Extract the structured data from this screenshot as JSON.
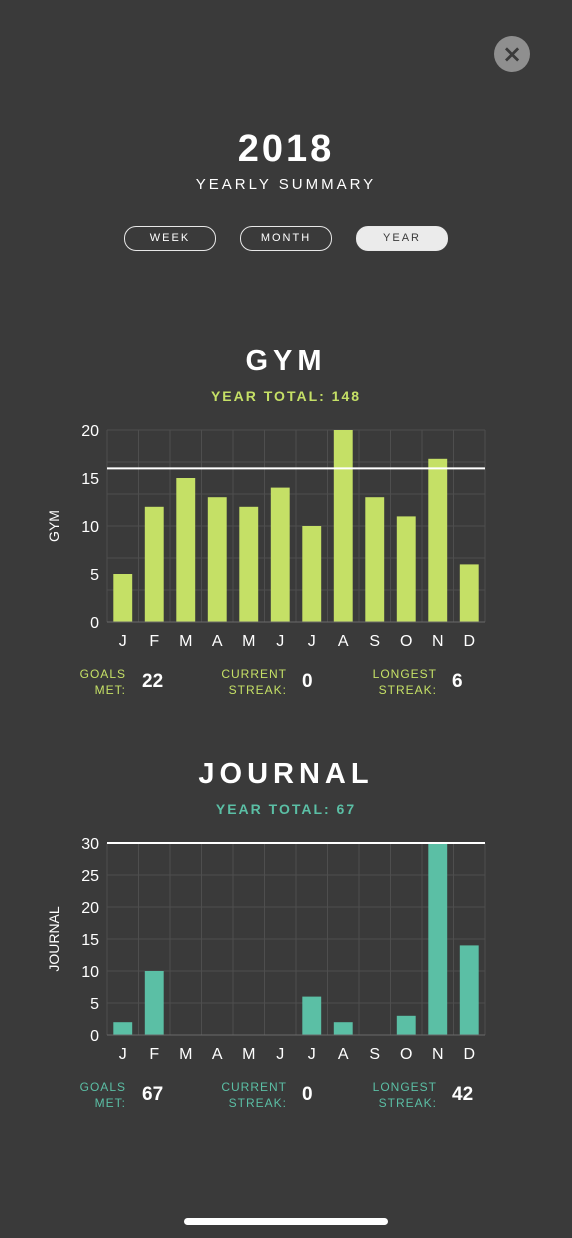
{
  "close_icon": "close-icon",
  "header": {
    "year": "2018",
    "subtitle": "YEARLY SUMMARY"
  },
  "period_tabs": [
    {
      "label": "WEEK",
      "selected": false
    },
    {
      "label": "MONTH",
      "selected": false
    },
    {
      "label": "YEAR",
      "selected": true
    }
  ],
  "gym": {
    "title": "GYM",
    "total_label": "YEAR TOTAL: 148",
    "accent_color": "#c5e066",
    "stats": [
      {
        "label": "GOALS\nMET:",
        "value": "22"
      },
      {
        "label": "CURRENT\nSTREAK:",
        "value": "0"
      },
      {
        "label": "LONGEST\nSTREAK:",
        "value": "6"
      }
    ]
  },
  "journal": {
    "title": "JOURNAL",
    "total_label": "YEAR TOTAL: 67",
    "accent_color": "#5bbfa5",
    "stats": [
      {
        "label": "GOALS\nMET:",
        "value": "67"
      },
      {
        "label": "CURRENT\nSTREAK:",
        "value": "0"
      },
      {
        "label": "LONGEST\nSTREAK:",
        "value": "42"
      }
    ]
  },
  "chart_data": [
    {
      "type": "bar",
      "categories": [
        "J",
        "F",
        "M",
        "A",
        "M",
        "J",
        "J",
        "A",
        "S",
        "O",
        "N",
        "D"
      ],
      "values": [
        5,
        12,
        15,
        13,
        12,
        14,
        10,
        20,
        13,
        11,
        17,
        6
      ],
      "title": "",
      "xlabel": "",
      "ylabel": "GYM",
      "ylim": [
        0,
        20
      ],
      "yticks": [
        0,
        5,
        10,
        15,
        20
      ],
      "goal_line": 16,
      "grid": true,
      "color": "#c5e066"
    },
    {
      "type": "bar",
      "categories": [
        "J",
        "F",
        "M",
        "A",
        "M",
        "J",
        "J",
        "A",
        "S",
        "O",
        "N",
        "D"
      ],
      "values": [
        2,
        10,
        0,
        0,
        0,
        0,
        6,
        2,
        0,
        3,
        30,
        14
      ],
      "title": "",
      "xlabel": "",
      "ylabel": "JOURNAL",
      "ylim": [
        0,
        30
      ],
      "yticks": [
        0,
        5,
        10,
        15,
        20,
        25,
        30
      ],
      "goal_line": 30,
      "grid": true,
      "color": "#5bbfa5"
    }
  ]
}
